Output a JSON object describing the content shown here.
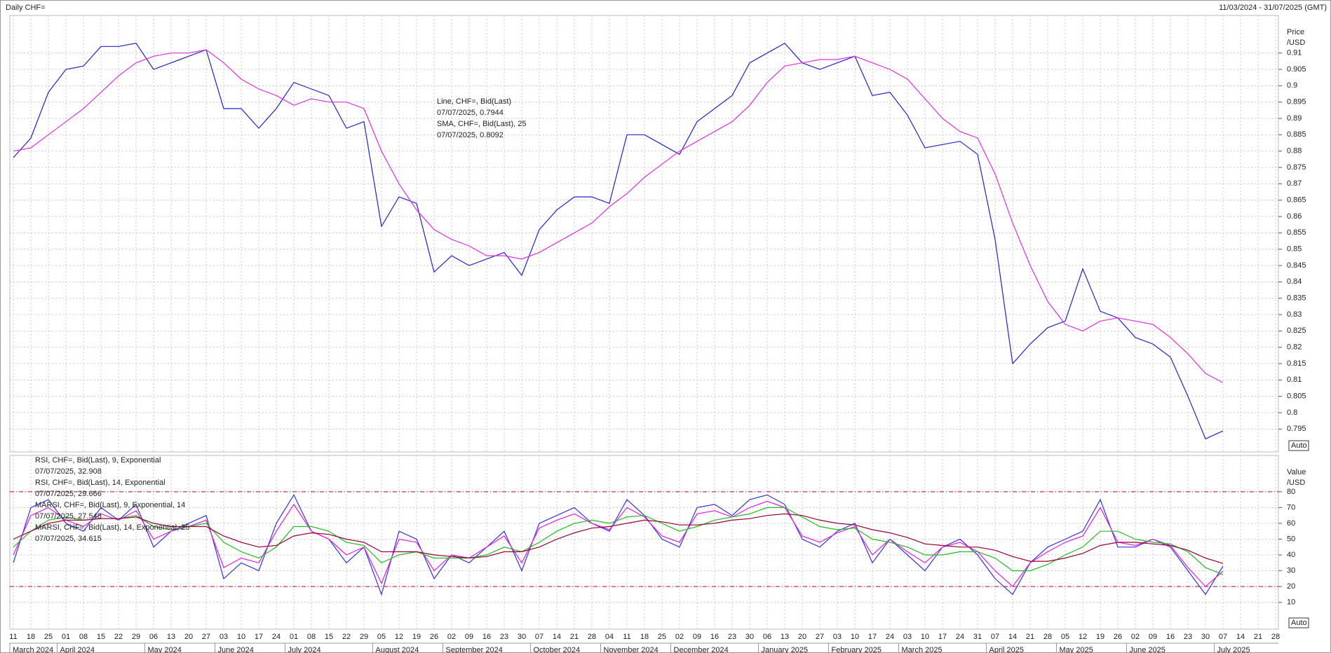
{
  "header": {
    "title": "Daily CHF=",
    "range": "11/03/2024 - 31/07/2025 (GMT)",
    "auto": "Auto"
  },
  "chart_data": [
    {
      "type": "line",
      "ylabel": [
        "Price",
        "/USD"
      ],
      "ylim": [
        0.788,
        0.9215
      ],
      "yticks": [
        0.795,
        0.8,
        0.805,
        0.81,
        0.815,
        0.82,
        0.825,
        0.83,
        0.835,
        0.84,
        0.845,
        0.85,
        0.855,
        0.86,
        0.865,
        0.87,
        0.875,
        0.88,
        0.885,
        0.89,
        0.895,
        0.9,
        0.905,
        0.91
      ],
      "grid": true,
      "series": [
        {
          "name": "Line, CHF=, Bid(Last)",
          "last_label": "07/07/2025, 0.7944",
          "color": "#2222cc",
          "values": [
            0.878,
            0.884,
            0.898,
            0.905,
            0.906,
            0.912,
            0.912,
            0.913,
            0.905,
            0.907,
            0.909,
            0.911,
            0.893,
            0.893,
            0.887,
            0.893,
            0.901,
            0.899,
            0.897,
            0.887,
            0.889,
            0.857,
            0.866,
            0.864,
            0.843,
            0.848,
            0.845,
            0.847,
            0.849,
            0.842,
            0.856,
            0.862,
            0.866,
            0.866,
            0.864,
            0.885,
            0.885,
            0.882,
            0.879,
            0.889,
            0.893,
            0.897,
            0.907,
            0.91,
            0.913,
            0.907,
            0.905,
            0.907,
            0.909,
            0.897,
            0.898,
            0.891,
            0.881,
            0.882,
            0.883,
            0.879,
            0.853,
            0.815,
            0.821,
            0.826,
            0.828,
            0.844,
            0.831,
            0.829,
            0.823,
            0.821,
            0.817,
            0.805,
            0.792,
            0.7944,
            null,
            null,
            null
          ]
        },
        {
          "name": "SMA, CHF=, Bid(Last), 25",
          "last_label": "07/07/2025, 0.8092",
          "color": "#e030e0",
          "values": [
            0.88,
            0.881,
            0.885,
            0.889,
            0.893,
            0.898,
            0.903,
            0.907,
            0.909,
            0.91,
            0.91,
            0.911,
            0.907,
            0.902,
            0.899,
            0.897,
            0.894,
            0.896,
            0.895,
            0.895,
            0.893,
            0.88,
            0.87,
            0.862,
            0.856,
            0.853,
            0.851,
            0.848,
            0.848,
            0.847,
            0.849,
            0.852,
            0.855,
            0.858,
            0.863,
            0.867,
            0.872,
            0.876,
            0.88,
            0.883,
            0.886,
            0.889,
            0.894,
            0.901,
            0.906,
            0.907,
            0.908,
            0.908,
            0.909,
            0.907,
            0.905,
            0.902,
            0.896,
            0.89,
            0.886,
            0.884,
            0.873,
            0.858,
            0.845,
            0.834,
            0.827,
            0.825,
            0.828,
            0.829,
            0.828,
            0.827,
            0.823,
            0.818,
            0.812,
            0.8092,
            null,
            null,
            null
          ]
        }
      ]
    },
    {
      "type": "line",
      "ylabel": [
        "Value",
        "/USD"
      ],
      "ylim": [
        -7,
        103
      ],
      "yticks": [
        10,
        20,
        30,
        40,
        50,
        60,
        70,
        80
      ],
      "grid": true,
      "hlines": [
        20,
        80
      ],
      "hline_color": "#cc0033",
      "series": [
        {
          "name": "RSI, CHF=, Bid(Last), 9, Exponential",
          "last_label": "07/07/2025, 32.908",
          "color": "#3333dd",
          "values": [
            35,
            70,
            75,
            60,
            55,
            70,
            62,
            72,
            45,
            55,
            60,
            65,
            25,
            35,
            30,
            60,
            78,
            55,
            50,
            35,
            45,
            15,
            55,
            50,
            25,
            40,
            35,
            45,
            55,
            30,
            60,
            65,
            70,
            60,
            55,
            75,
            65,
            50,
            45,
            70,
            72,
            65,
            75,
            78,
            72,
            50,
            45,
            55,
            60,
            35,
            50,
            40,
            30,
            45,
            50,
            40,
            25,
            15,
            35,
            45,
            50,
            55,
            75,
            45,
            45,
            50,
            45,
            30,
            15,
            32.908,
            null,
            null,
            null
          ]
        },
        {
          "name": "RSI, CHF=, Bid(Last), 14, Exponential",
          "last_label": "07/07/2025, 29.666",
          "color": "#e020e0",
          "values": [
            40,
            65,
            70,
            62,
            58,
            66,
            62,
            68,
            50,
            55,
            58,
            62,
            32,
            38,
            35,
            55,
            72,
            55,
            50,
            40,
            45,
            22,
            50,
            48,
            30,
            40,
            38,
            45,
            52,
            35,
            57,
            62,
            66,
            60,
            56,
            70,
            64,
            52,
            48,
            66,
            68,
            64,
            70,
            74,
            70,
            52,
            48,
            54,
            58,
            40,
            50,
            42,
            35,
            45,
            48,
            42,
            30,
            20,
            35,
            42,
            48,
            52,
            70,
            48,
            46,
            50,
            46,
            32,
            20,
            29.666,
            null,
            null,
            null
          ]
        },
        {
          "name": "MARSI, CHF=, Bid(Last), 9, Exponential, 14",
          "last_label": "07/07/2025, 27.548",
          "color": "#22bb22",
          "values": [
            45,
            55,
            62,
            64,
            62,
            63,
            63,
            65,
            58,
            56,
            58,
            60,
            48,
            42,
            38,
            45,
            58,
            58,
            55,
            48,
            46,
            35,
            40,
            42,
            38,
            38,
            38,
            40,
            45,
            42,
            48,
            55,
            60,
            62,
            60,
            64,
            65,
            60,
            55,
            58,
            62,
            64,
            66,
            70,
            70,
            64,
            58,
            56,
            57,
            50,
            48,
            45,
            40,
            40,
            42,
            42,
            38,
            30,
            30,
            34,
            40,
            45,
            55,
            55,
            50,
            48,
            47,
            42,
            32,
            27.548,
            null,
            null,
            null
          ]
        },
        {
          "name": "MARSI, CHF=, Bid(Last), 14, Exponential, 25",
          "last_label": "07/07/2025, 34.615",
          "color": "#990033",
          "values": [
            50,
            55,
            60,
            62,
            62,
            63,
            63,
            64,
            60,
            58,
            58,
            58,
            52,
            48,
            45,
            46,
            52,
            54,
            53,
            50,
            48,
            42,
            42,
            42,
            40,
            39,
            38,
            39,
            42,
            42,
            45,
            50,
            54,
            57,
            58,
            60,
            62,
            61,
            59,
            59,
            60,
            62,
            63,
            65,
            66,
            65,
            62,
            60,
            59,
            56,
            54,
            51,
            47,
            46,
            45,
            45,
            43,
            39,
            36,
            36,
            38,
            41,
            46,
            48,
            48,
            47,
            46,
            43,
            38,
            34.615,
            null,
            null,
            null
          ]
        }
      ],
      "categories": [
        "11",
        "18",
        "25",
        "01",
        "08",
        "15",
        "22",
        "29",
        "06",
        "13",
        "20",
        "27",
        "03",
        "10",
        "17",
        "24",
        "01",
        "08",
        "15",
        "22",
        "29",
        "05",
        "12",
        "19",
        "26",
        "02",
        "09",
        "16",
        "23",
        "30",
        "07",
        "14",
        "21",
        "28",
        "04",
        "11",
        "18",
        "25",
        "02",
        "09",
        "16",
        "23",
        "30",
        "06",
        "13",
        "20",
        "27",
        "03",
        "10",
        "17",
        "24",
        "03",
        "10",
        "17",
        "24",
        "31",
        "07",
        "14",
        "21",
        "28",
        "05",
        "12",
        "19",
        "26",
        "02",
        "09",
        "16",
        "23",
        "30",
        "07",
        "14",
        "21",
        "28"
      ],
      "months": [
        "March 2024",
        "April 2024",
        "May 2024",
        "June 2024",
        "July 2024",
        "August 2024",
        "September 2024",
        "October 2024",
        "November 2024",
        "December 2024",
        "January 2025",
        "February 2025",
        "March 2025",
        "April 2025",
        "May 2025",
        "June 2025",
        "July 2025"
      ]
    }
  ]
}
